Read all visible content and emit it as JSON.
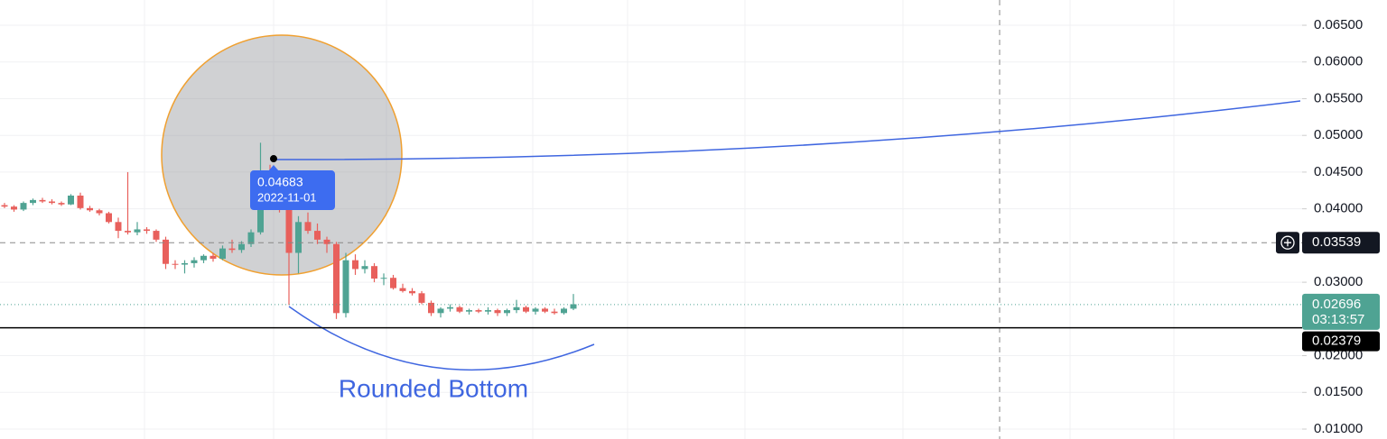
{
  "chart_data": {
    "type": "candlestick",
    "categories": [
      null,
      null,
      null,
      null,
      null,
      null,
      null,
      null,
      null,
      null,
      null,
      null,
      null,
      null,
      null,
      null,
      null,
      null,
      null,
      null,
      null,
      null,
      null,
      null,
      null,
      null,
      null,
      null,
      null,
      null,
      null,
      null,
      null,
      null,
      null,
      null,
      null,
      null,
      null,
      null,
      null,
      null,
      null,
      null,
      null,
      null,
      null,
      null,
      null,
      null,
      null,
      null,
      null,
      null,
      null,
      null,
      null,
      null,
      null,
      null,
      null
    ],
    "open": [
      0.0405,
      0.0403,
      0.0399,
      0.0408,
      0.0412,
      0.041,
      0.0408,
      0.0406,
      0.0418,
      0.0401,
      0.0398,
      0.0394,
      0.0382,
      0.037,
      0.0368,
      0.0372,
      0.037,
      0.0358,
      0.0325,
      0.0324,
      0.0326,
      0.033,
      0.0336,
      0.0332,
      0.0346,
      0.0344,
      0.0352,
      0.0368,
      0.045,
      0.0412,
      0.04,
      0.034,
      0.0382,
      0.037,
      0.0358,
      0.0352,
      0.0258,
      0.033,
      0.0318,
      0.0322,
      0.0305,
      0.0306,
      0.0292,
      0.0288,
      0.0285,
      0.0272,
      0.0258,
      0.0264,
      0.0266,
      0.026,
      0.0262,
      0.026,
      0.0262,
      0.0258,
      0.0262,
      0.0266,
      0.026,
      0.0264,
      0.026,
      0.0258,
      0.0264
    ],
    "high": [
      0.0408,
      0.0405,
      0.041,
      0.0414,
      0.0415,
      0.0413,
      0.041,
      0.042,
      0.0422,
      0.0404,
      0.04,
      0.0396,
      0.0388,
      0.045,
      0.0382,
      0.0375,
      0.0372,
      0.0362,
      0.033,
      0.033,
      0.0334,
      0.0338,
      0.034,
      0.035,
      0.0358,
      0.0356,
      0.0372,
      0.049,
      0.046,
      0.0426,
      0.041,
      0.039,
      0.0395,
      0.038,
      0.0362,
      0.0355,
      0.034,
      0.0338,
      0.033,
      0.0326,
      0.0312,
      0.031,
      0.0298,
      0.0292,
      0.0288,
      0.0275,
      0.0266,
      0.027,
      0.0268,
      0.0264,
      0.0264,
      0.0266,
      0.0264,
      0.0264,
      0.0276,
      0.0268,
      0.0266,
      0.0266,
      0.0264,
      0.0266,
      0.0284
    ],
    "low": [
      0.0401,
      0.0396,
      0.0397,
      0.0405,
      0.0408,
      0.0406,
      0.0404,
      0.0405,
      0.0399,
      0.0396,
      0.0391,
      0.038,
      0.036,
      0.0365,
      0.0364,
      0.0366,
      0.0355,
      0.0318,
      0.0318,
      0.0312,
      0.032,
      0.0326,
      0.0328,
      0.033,
      0.034,
      0.034,
      0.0348,
      0.0365,
      0.0405,
      0.0395,
      0.0269,
      0.0312,
      0.0366,
      0.0352,
      0.034,
      0.025,
      0.0252,
      0.031,
      0.0312,
      0.03,
      0.0296,
      0.029,
      0.0286,
      0.0282,
      0.027,
      0.0254,
      0.0252,
      0.026,
      0.0258,
      0.0256,
      0.0258,
      0.0256,
      0.0254,
      0.0254,
      0.0258,
      0.0258,
      0.0256,
      0.0258,
      0.0256,
      0.0256,
      0.0262
    ],
    "close": [
      0.0403,
      0.0399,
      0.0408,
      0.0412,
      0.041,
      0.0408,
      0.0406,
      0.0418,
      0.0401,
      0.0398,
      0.0394,
      0.0382,
      0.037,
      0.0368,
      0.0372,
      0.037,
      0.0358,
      0.0325,
      0.0324,
      0.0326,
      0.033,
      0.0336,
      0.0332,
      0.0346,
      0.0344,
      0.0352,
      0.0368,
      0.045,
      0.0412,
      0.04,
      0.034,
      0.0382,
      0.037,
      0.0358,
      0.0352,
      0.0258,
      0.033,
      0.0318,
      0.0322,
      0.0305,
      0.0306,
      0.0292,
      0.0288,
      0.0285,
      0.0272,
      0.0258,
      0.0264,
      0.0266,
      0.026,
      0.0262,
      0.026,
      0.0262,
      0.0258,
      0.0262,
      0.0266,
      0.026,
      0.0264,
      0.026,
      0.0258,
      0.0264,
      0.027
    ],
    "up_color": "#4fa393",
    "down_color": "#e8605c",
    "ylim": [
      0.00865,
      0.06844
    ],
    "yticks": [
      {
        "value": 0.065,
        "label": "0.06500"
      },
      {
        "value": 0.06,
        "label": "0.06000"
      },
      {
        "value": 0.055,
        "label": "0.05500"
      },
      {
        "value": 0.05,
        "label": "0.05000"
      },
      {
        "value": 0.045,
        "label": "0.04500"
      },
      {
        "value": 0.04,
        "label": "0.04000"
      },
      {
        "value": 0.03,
        "label": "0.03000"
      },
      {
        "value": 0.02,
        "label": "0.02000"
      },
      {
        "value": 0.015,
        "label": "0.01500"
      },
      {
        "value": 0.01,
        "label": "0.01000"
      }
    ],
    "grid": true,
    "crosshair_price": 0.03539,
    "last_price": 0.02696,
    "countdown": "03:13:57",
    "last_price_color": "#4fa393",
    "support_price": 0.02379,
    "tooltip": {
      "price": 0.04683,
      "date": "2022-11-01"
    },
    "annotation": "Rounded Bottom"
  }
}
